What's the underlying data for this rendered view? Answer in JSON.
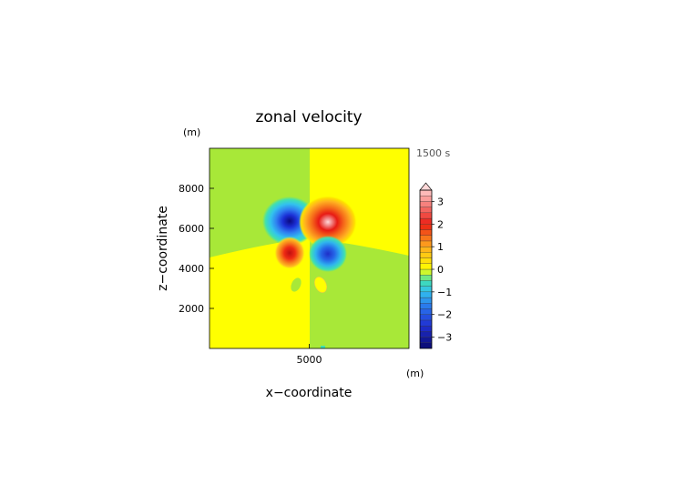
{
  "chart_data": {
    "type": "heatmap",
    "title": "zonal velocity",
    "time_label": "1500 s",
    "xlabel": "x−coordinate",
    "ylabel": "z−coordinate",
    "x_unit": "(m)",
    "y_unit": "(m)",
    "xlim": [
      0,
      10000
    ],
    "ylim": [
      0,
      10000
    ],
    "x_ticks": [
      5000
    ],
    "y_ticks": [
      2000,
      4000,
      6000,
      8000
    ],
    "grid": false,
    "colorbar": {
      "range": [
        -3.5,
        3.5
      ],
      "step": 0.25,
      "extend": "max",
      "tick_values": [
        3,
        2,
        1,
        0,
        -1,
        -2,
        -3
      ],
      "tick_labels": [
        "3",
        "2",
        "1",
        "0",
        "−1",
        "−2",
        "−3"
      ]
    },
    "features": [
      {
        "kind": "vortex",
        "x": 4200,
        "z": 6100,
        "peak": -3.2
      },
      {
        "kind": "vortex",
        "x": 5800,
        "z": 6100,
        "peak": 3.4
      },
      {
        "kind": "vortex",
        "x": 4200,
        "z": 4900,
        "peak": 2.2
      },
      {
        "kind": "vortex",
        "x": 5800,
        "z": 4900,
        "peak": -2.6
      }
    ]
  }
}
